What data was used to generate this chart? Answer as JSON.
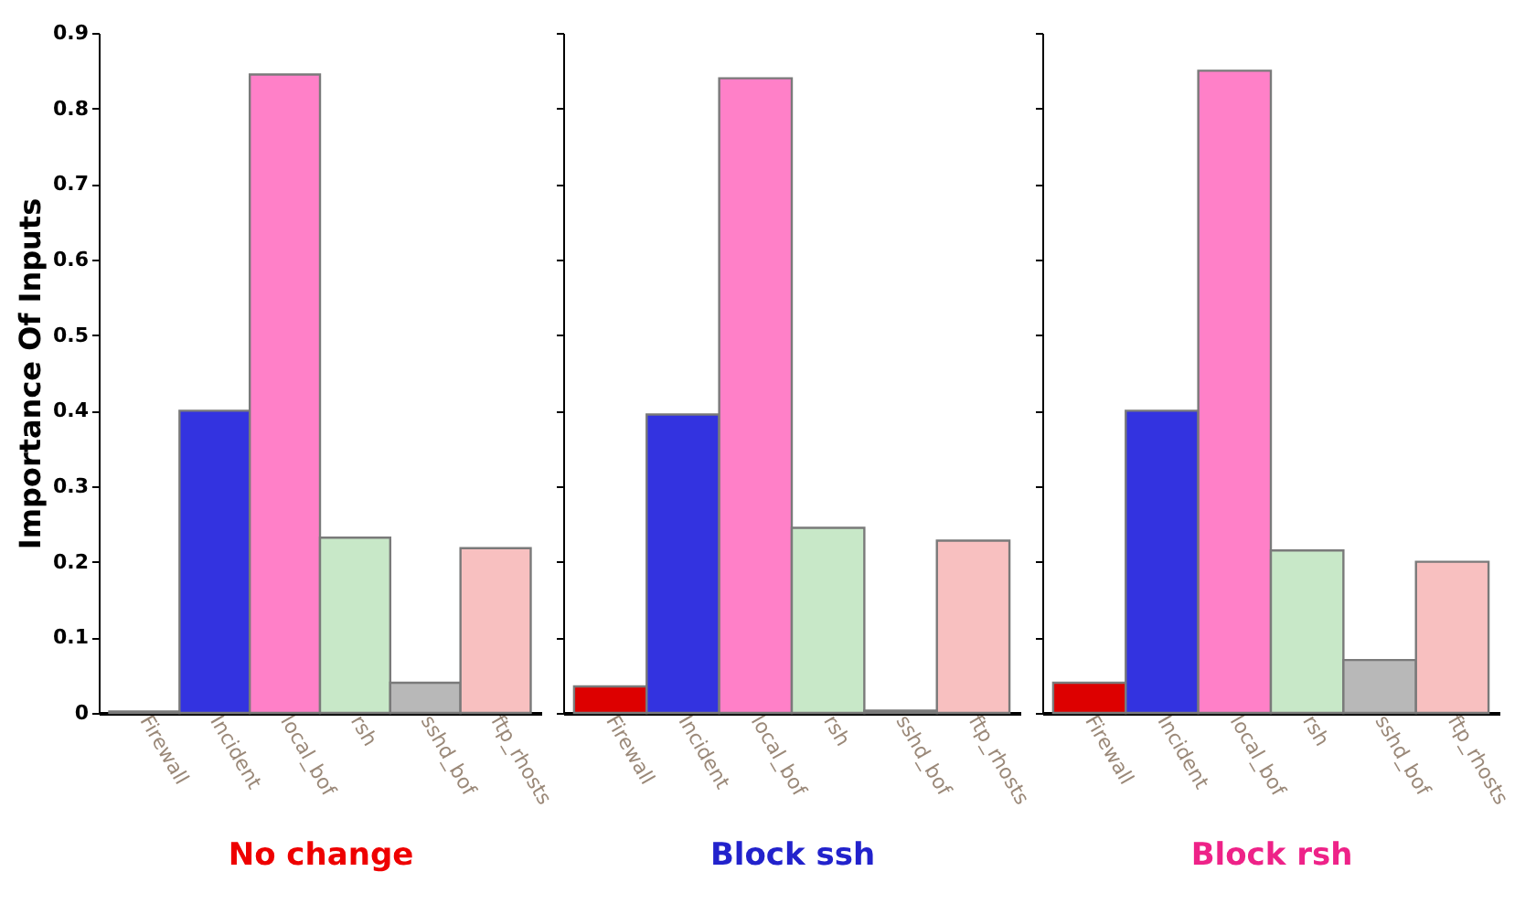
{
  "chart_data": [
    {
      "type": "bar",
      "xlabel": "No change",
      "ylabel": "Importance Of Inputs",
      "categories": [
        "Firewall",
        "Incident",
        "local_bof",
        "rsh",
        "sshd_bof",
        "ftp_rhosts"
      ],
      "values": [
        0.002,
        0.4,
        0.845,
        0.232,
        0.04,
        0.218
      ],
      "colors": [
        "#dd0000",
        "#3333e0",
        "#ff80c8",
        "#c8e8c8",
        "#b8b8b8",
        "#f8c0c0"
      ],
      "ylim": [
        0,
        0.9
      ],
      "yticks": [
        0,
        0.1,
        0.2,
        0.3,
        0.4,
        0.5,
        0.6,
        0.7,
        0.8,
        0.9
      ]
    },
    {
      "type": "bar",
      "xlabel": "Block ssh",
      "categories": [
        "Firewall",
        "Incident",
        "local_bof",
        "rsh",
        "sshd_bof",
        "ftp_rhosts"
      ],
      "values": [
        0.035,
        0.395,
        0.84,
        0.245,
        0.003,
        0.228
      ],
      "colors": [
        "#dd0000",
        "#3333e0",
        "#ff80c8",
        "#c8e8c8",
        "#b8b8b8",
        "#f8c0c0"
      ],
      "ylim": [
        0,
        0.9
      ],
      "yticks": [
        0,
        0.1,
        0.2,
        0.3,
        0.4,
        0.5,
        0.6,
        0.7,
        0.8,
        0.9
      ],
      "tick_labels": "x"
    },
    {
      "type": "bar",
      "xlabel": "Block rsh",
      "categories": [
        "Firewall",
        "Incident",
        "local_bof",
        "rsh",
        "sshd_bof",
        "ftp_rhosts"
      ],
      "values": [
        0.04,
        0.4,
        0.85,
        0.215,
        0.07,
        0.2
      ],
      "colors": [
        "#dd0000",
        "#3333e0",
        "#ff80c8",
        "#c8e8c8",
        "#b8b8b8",
        "#f8c0c0"
      ],
      "ylim": [
        0,
        0.9
      ],
      "yticks": [
        0,
        0.1,
        0.2,
        0.3,
        0.4,
        0.5,
        0.6,
        0.7,
        0.8,
        0.9
      ],
      "tick_labels": "x"
    }
  ]
}
